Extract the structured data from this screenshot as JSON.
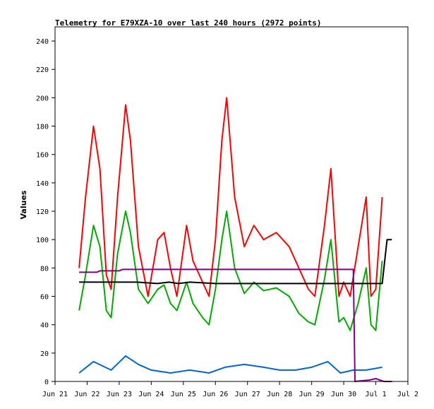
{
  "chart_data": {
    "type": "line",
    "title": "Telemetry for E79XZA-10 over last 240 hours (2972 points)",
    "xlabel": "",
    "ylabel": "Values",
    "ylim": [
      0,
      250
    ],
    "yticks": [
      0,
      20,
      40,
      60,
      80,
      100,
      120,
      140,
      160,
      180,
      200,
      220,
      240
    ],
    "xlim_days": [
      0,
      11
    ],
    "xticks": [
      "Jun 21",
      "Jun 22",
      "Jun 23",
      "Jun 24",
      "Jun 25",
      "Jun 26",
      "Jun 27",
      "Jun 28",
      "Jun 29",
      "Jun 30",
      "Jul 1",
      "Jul 2"
    ],
    "grid": false,
    "legend": "none",
    "series": [
      {
        "color": "#ff0000",
        "x": [
          0.75,
          0.95,
          1.2,
          1.4,
          1.6,
          1.75,
          1.95,
          2.2,
          2.35,
          2.6,
          2.9,
          3.2,
          3.4,
          3.6,
          3.8,
          4.1,
          4.3,
          4.6,
          4.8,
          5.0,
          5.2,
          5.35,
          5.6,
          5.9,
          6.2,
          6.5,
          6.9,
          7.3,
          7.6,
          7.9,
          8.1,
          8.4,
          8.6,
          8.85,
          9.0,
          9.2,
          9.45,
          9.7,
          9.85,
          10.0,
          10.2
        ],
        "y": [
          80,
          130,
          180,
          150,
          75,
          65,
          130,
          195,
          170,
          95,
          60,
          100,
          105,
          80,
          60,
          110,
          85,
          70,
          60,
          100,
          170,
          200,
          130,
          95,
          110,
          100,
          105,
          95,
          80,
          65,
          60,
          110,
          150,
          60,
          70,
          60,
          95,
          130,
          60,
          65,
          130
        ]
      },
      {
        "color": "#00aa00",
        "x": [
          0.75,
          0.95,
          1.2,
          1.4,
          1.6,
          1.75,
          1.95,
          2.2,
          2.35,
          2.6,
          2.9,
          3.2,
          3.4,
          3.6,
          3.8,
          4.1,
          4.3,
          4.6,
          4.8,
          5.0,
          5.2,
          5.35,
          5.6,
          5.9,
          6.2,
          6.5,
          6.9,
          7.3,
          7.6,
          7.9,
          8.1,
          8.4,
          8.6,
          8.85,
          9.0,
          9.2,
          9.45,
          9.7,
          9.85,
          10.0,
          10.2
        ],
        "y": [
          50,
          75,
          110,
          95,
          50,
          45,
          90,
          120,
          105,
          65,
          55,
          65,
          68,
          55,
          50,
          70,
          55,
          45,
          40,
          65,
          100,
          120,
          80,
          62,
          70,
          64,
          66,
          60,
          48,
          42,
          40,
          72,
          100,
          42,
          45,
          36,
          55,
          80,
          40,
          36,
          85
        ]
      },
      {
        "color": "#0066cc",
        "x": [
          0.75,
          1.2,
          1.75,
          2.2,
          2.6,
          3.0,
          3.6,
          4.2,
          4.8,
          5.3,
          5.9,
          6.5,
          7.0,
          7.5,
          8.0,
          8.5,
          8.9,
          9.3,
          9.7,
          10.2
        ],
        "y": [
          6,
          14,
          8,
          18,
          12,
          8,
          6,
          8,
          6,
          10,
          12,
          10,
          8,
          8,
          10,
          14,
          6,
          8,
          8,
          10
        ]
      },
      {
        "color": "#000000",
        "x": [
          0.75,
          1.7,
          1.95,
          2.55,
          3.2,
          3.55,
          3.85,
          4.2,
          5.0,
          10.2,
          10.35,
          10.5
        ],
        "y": [
          70,
          70,
          70,
          70,
          69,
          70,
          69,
          70,
          69,
          69,
          100,
          100
        ]
      },
      {
        "color": "#800080",
        "x": [
          0.75,
          1.3,
          1.4,
          2.0,
          2.1,
          9.3,
          9.35,
          9.8,
          10.0,
          10.25,
          10.5
        ],
        "y": [
          77,
          77,
          78,
          78,
          79,
          79,
          0,
          1,
          2,
          0,
          0
        ]
      }
    ]
  }
}
